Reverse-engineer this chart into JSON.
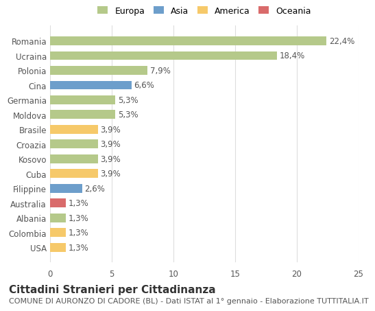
{
  "countries": [
    "Romania",
    "Ucraina",
    "Polonia",
    "Cina",
    "Germania",
    "Moldova",
    "Brasile",
    "Croazia",
    "Kosovo",
    "Cuba",
    "Filippine",
    "Australia",
    "Albania",
    "Colombia",
    "USA"
  ],
  "values": [
    22.4,
    18.4,
    7.9,
    6.6,
    5.3,
    5.3,
    3.9,
    3.9,
    3.9,
    3.9,
    2.6,
    1.3,
    1.3,
    1.3,
    1.3
  ],
  "labels": [
    "22,4%",
    "18,4%",
    "7,9%",
    "6,6%",
    "5,3%",
    "5,3%",
    "3,9%",
    "3,9%",
    "3,9%",
    "3,9%",
    "2,6%",
    "1,3%",
    "1,3%",
    "1,3%",
    "1,3%"
  ],
  "continents": [
    "Europa",
    "Europa",
    "Europa",
    "Asia",
    "Europa",
    "Europa",
    "America",
    "Europa",
    "Europa",
    "America",
    "Asia",
    "Oceania",
    "Europa",
    "America",
    "America"
  ],
  "colors": {
    "Europa": "#b5c98a",
    "Asia": "#6d9ecb",
    "America": "#f6c96a",
    "Oceania": "#d96b6b"
  },
  "legend_labels": [
    "Europa",
    "Asia",
    "America",
    "Oceania"
  ],
  "legend_colors": [
    "#b5c98a",
    "#6d9ecb",
    "#f6c96a",
    "#d96b6b"
  ],
  "xlim": [
    0,
    25
  ],
  "xticks": [
    0,
    5,
    10,
    15,
    20,
    25
  ],
  "title": "Cittadini Stranieri per Cittadinanza",
  "subtitle": "COMUNE DI AURONZO DI CADORE (BL) - Dati ISTAT al 1° gennaio - Elaborazione TUTTITALIA.IT",
  "background_color": "#ffffff",
  "grid_color": "#dddddd",
  "bar_height": 0.6,
  "label_fontsize": 8.5,
  "tick_fontsize": 8.5,
  "title_fontsize": 11,
  "subtitle_fontsize": 8
}
